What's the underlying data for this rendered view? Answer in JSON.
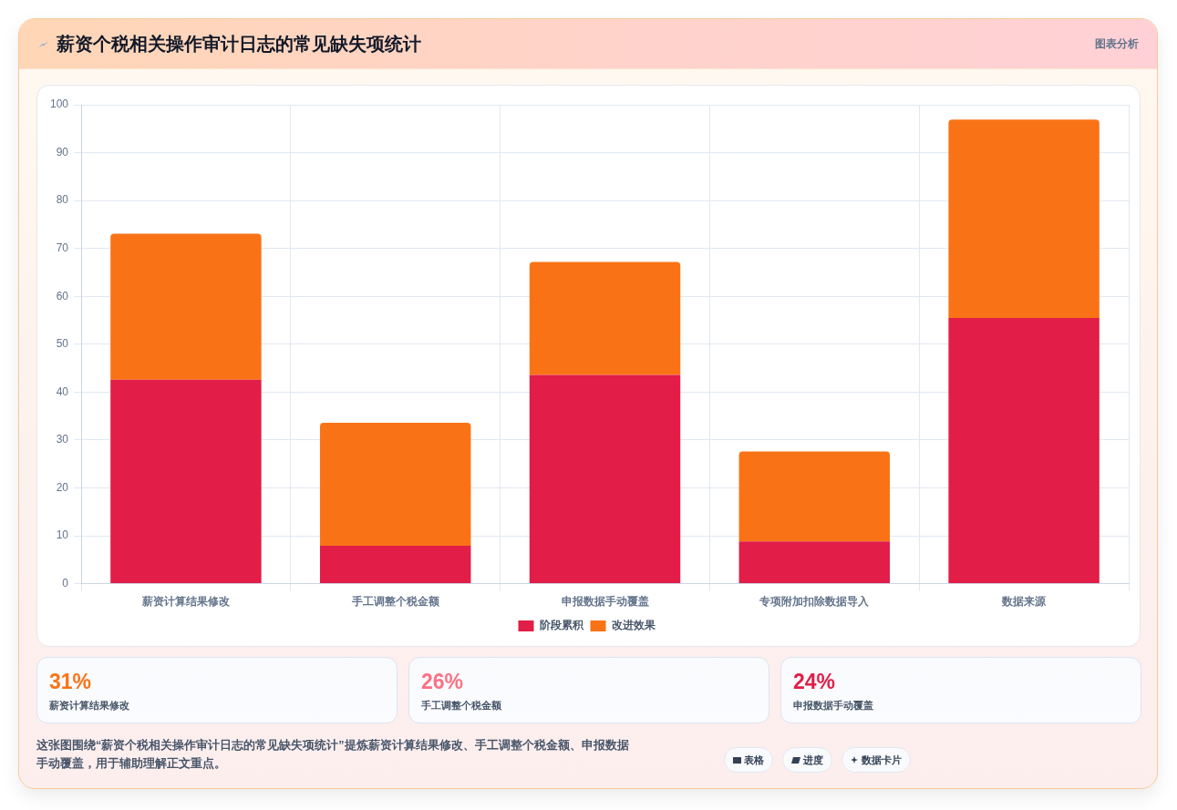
{
  "chart_data": [
    {
      "type": "bar",
      "title": "薪资个税相关操作审计日志的常见缺失项统计",
      "annotations": [
        "图表分析"
      ],
      "categories": [
        "薪资计算结果修改",
        "手工调整个税金额",
        "申报数据手动覆盖",
        "专项附加扣除数据导入",
        "数据来源"
      ],
      "series": [
        {
          "name": "阶段累积",
          "color": "#e11d48",
          "values": [
            42.6,
            7.9,
            43.6,
            8.8,
            55.5
          ]
        },
        {
          "name": "改进效果",
          "color": "#f97316",
          "values": [
            30.5,
            25.7,
            23.6,
            18.8,
            41.4
          ]
        }
      ],
      "stacked": true,
      "ylim": [
        0,
        100
      ],
      "yticks": [
        0,
        10,
        20,
        30,
        40,
        50,
        60,
        70,
        80,
        90,
        100
      ],
      "grid": true,
      "legend": "bottom"
    },
    {
      "type": "other",
      "annotations": [
        "31%",
        "薪资计算结果修改",
        "26%",
        "手工调整个税金额",
        "24%",
        "申报数据手动覆盖",
        "这张图围绕“薪资个税相关操作审计日志的常见缺失项统计”提炼薪资计算结果修改、手工调整个税金额、申报数据手动覆盖，用于辅助理解正文重点。",
        "表格",
        "进度",
        "数据卡片"
      ]
    }
  ]
}
